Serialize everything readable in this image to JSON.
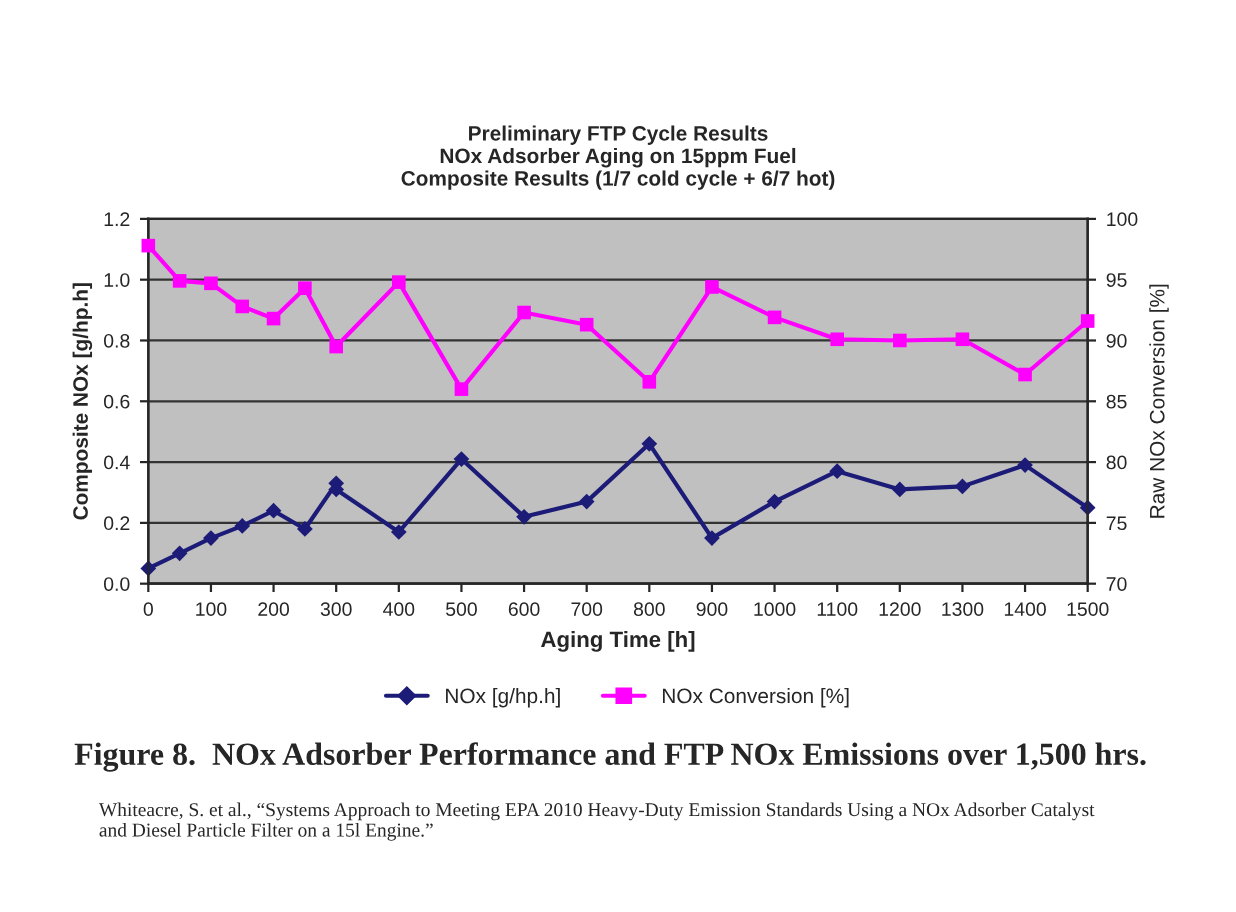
{
  "chart_data": {
    "type": "line",
    "title": "Preliminary FTP Cycle Results\nNOx Adsorber Aging on 15ppm Fuel\nComposite Results (1/7 cold cycle + 6/7 hot)",
    "xlabel": "Aging Time [h]",
    "ylabel": "Composite NOx [g/hp.h]",
    "y2label": "Raw NOx Conversion [%]",
    "series": [
      {
        "name": "NOx [g/hp.h]",
        "color": "#1c1c78",
        "marker": "diamond",
        "x": [
          0,
          50,
          100,
          150,
          200,
          250,
          300,
          300,
          400,
          500,
          600,
          700,
          800,
          900,
          1000,
          1100,
          1200,
          1300,
          1400,
          1500
        ],
        "values": [
          0.05,
          0.1,
          0.15,
          0.19,
          0.24,
          0.18,
          0.33,
          0.31,
          0.17,
          0.41,
          0.22,
          0.27,
          0.46,
          0.15,
          0.27,
          0.37,
          0.31,
          0.32,
          0.39,
          0.25
        ]
      },
      {
        "name": "NOx Conversion [%]",
        "color": "#ff00ff",
        "marker": "square",
        "axis": "y2",
        "x": [
          0,
          50,
          100,
          150,
          200,
          250,
          300,
          400,
          500,
          600,
          700,
          800,
          900,
          1000,
          1100,
          1200,
          1300,
          1400,
          1500
        ],
        "values": [
          97.8,
          94.9,
          94.7,
          92.8,
          91.8,
          94.3,
          89.5,
          94.8,
          86.0,
          92.3,
          91.3,
          86.6,
          94.4,
          91.9,
          90.1,
          90.0,
          90.1,
          87.2,
          91.6
        ]
      }
    ],
    "xlim": [
      0,
      1500
    ],
    "xticks": [
      0,
      100,
      200,
      300,
      400,
      500,
      600,
      700,
      800,
      900,
      1000,
      1100,
      1200,
      1300,
      1400,
      1500
    ],
    "ylim": [
      0,
      1.2
    ],
    "yticks": [
      {
        "value": 0,
        "label": "0.0"
      },
      {
        "value": 0.2,
        "label": "0.2"
      },
      {
        "value": 0.4,
        "label": "0.4"
      },
      {
        "value": 0.6,
        "label": "0.6"
      },
      {
        "value": 0.8,
        "label": "0.8"
      },
      {
        "value": 1.0,
        "label": "1.0"
      },
      {
        "value": 1.2,
        "label": "1.2"
      }
    ],
    "y2lim": [
      70,
      100
    ],
    "y2ticks": [
      70,
      75,
      80,
      85,
      90,
      95,
      100
    ],
    "grid": "y",
    "legend": "bottom",
    "line_style": "solid",
    "annotations": [
      "Figure 8.  NOx Adsorber Performance and FTP NOx Emissions over 1,500 hrs.",
      "Whiteacre, S. et al., “Systems Approach to Meeting EPA 2010 Heavy-Duty Emission Standards Using a NOx Adsorber Catalyst and Diesel Particle Filter on a 15l Engine.”"
    ]
  }
}
